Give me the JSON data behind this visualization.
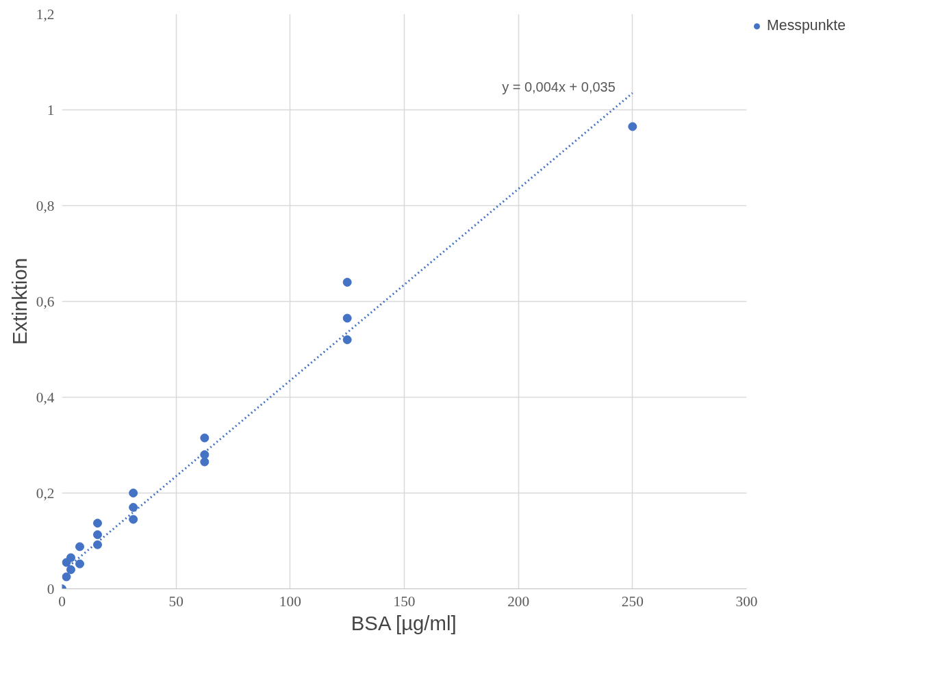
{
  "chart_data": {
    "type": "scatter",
    "xlabel": "BSA [µg/ml]",
    "ylabel": "Extinktion",
    "series": [
      {
        "name": "Messpunkte",
        "color": "#4472c4",
        "marker": "circle",
        "x": [
          0,
          1.95,
          1.95,
          3.9,
          3.9,
          7.8,
          7.8,
          15.6,
          15.6,
          15.6,
          31.25,
          31.25,
          31.25,
          62.5,
          62.5,
          62.5,
          125,
          125,
          125,
          250
        ],
        "values": [
          0,
          0.025,
          0.055,
          0.04,
          0.065,
          0.052,
          0.088,
          0.092,
          0.113,
          0.137,
          0.145,
          0.17,
          0.2,
          0.265,
          0.28,
          0.315,
          0.52,
          0.565,
          0.64,
          0.965
        ]
      },
      {
        "type": "line",
        "color": "#4472c4",
        "line_style": "dotted",
        "marker": "none",
        "x": [
          3,
          250
        ],
        "values": [
          0.047,
          1.035
        ]
      }
    ],
    "annotations": [
      {
        "text": "y = 0,004x + 0,035",
        "x": 250,
        "y": 1.035
      }
    ],
    "xlim": [
      0,
      300
    ],
    "ylim": [
      0,
      1.2
    ],
    "xticks": [
      0,
      50,
      100,
      150,
      200,
      250,
      300
    ],
    "yticks": [
      0,
      {
        "value": 0.2,
        "label": "0,2"
      },
      {
        "value": 0.4,
        "label": "0,4"
      },
      {
        "value": 0.6,
        "label": "0,6"
      },
      {
        "value": 0.8,
        "label": "0,8"
      },
      1,
      {
        "value": 1.2,
        "label": "1,2"
      }
    ],
    "grid": true,
    "legend": "top right"
  }
}
